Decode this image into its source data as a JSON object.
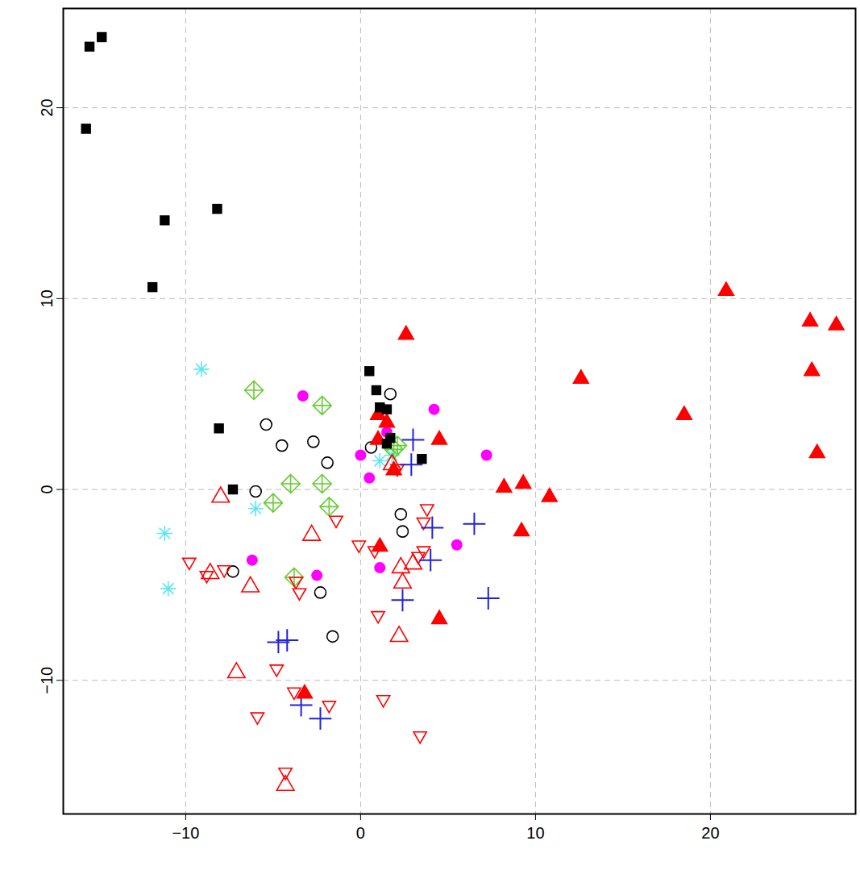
{
  "chart_data": {
    "type": "scatter",
    "xlim": [
      -17,
      28.3
    ],
    "ylim": [
      -17,
      25.2
    ],
    "xticks": [
      -10,
      0,
      10,
      20
    ],
    "yticks": [
      -10,
      0,
      10,
      20
    ],
    "grid": true,
    "series": [
      {
        "color": "#5ce6f5",
        "marker": "asterisk",
        "values": [
          [
            -9.1,
            6.3
          ],
          [
            -6.0,
            -1.0
          ],
          [
            -11.2,
            -2.3
          ],
          [
            -11.0,
            -5.2
          ],
          [
            1.1,
            1.5
          ],
          [
            1.8,
            1.8
          ]
        ]
      },
      {
        "color": "#66cc33",
        "marker": "diamond-plus",
        "values": [
          [
            -6.1,
            5.2
          ],
          [
            -2.2,
            4.4
          ],
          [
            -4.0,
            0.3
          ],
          [
            -2.2,
            0.3
          ],
          [
            -5.0,
            -0.7
          ],
          [
            -1.8,
            -0.9
          ],
          [
            -3.8,
            -4.6
          ],
          [
            1.9,
            2.1
          ],
          [
            2.1,
            2.3
          ]
        ]
      },
      {
        "color": "#000000",
        "marker": "open-circle",
        "values": [
          [
            -5.4,
            3.4
          ],
          [
            -4.5,
            2.3
          ],
          [
            -2.7,
            2.5
          ],
          [
            -1.9,
            1.4
          ],
          [
            1.7,
            5.0
          ],
          [
            0.6,
            2.2
          ],
          [
            -6.0,
            -0.1
          ],
          [
            2.3,
            -1.3
          ],
          [
            2.4,
            -2.2
          ],
          [
            -7.3,
            -4.3
          ],
          [
            -2.3,
            -5.4
          ],
          [
            -1.6,
            -7.7
          ]
        ]
      },
      {
        "color": "#ff0000",
        "marker": "open-triangle",
        "values": [
          [
            -8.0,
            -0.4
          ],
          [
            -2.8,
            -2.4
          ],
          [
            -8.6,
            -4.4
          ],
          [
            -6.3,
            -5.1
          ],
          [
            -7.1,
            -9.6
          ],
          [
            2.3,
            -4.1
          ],
          [
            2.4,
            -4.9
          ],
          [
            2.2,
            -7.7
          ],
          [
            1.8,
            1.3
          ],
          [
            -4.3,
            -15.5
          ],
          [
            3.0,
            -3.9
          ]
        ]
      },
      {
        "color": "#ff0000",
        "marker": "open-triangle-down",
        "values": [
          [
            -9.8,
            -3.8
          ],
          [
            -8.8,
            -4.5
          ],
          [
            -7.8,
            -4.2
          ],
          [
            -1.4,
            -1.6
          ],
          [
            -0.1,
            -2.9
          ],
          [
            0.8,
            -3.2
          ],
          [
            3.8,
            -1.0
          ],
          [
            3.6,
            -1.7
          ],
          [
            3.6,
            -3.2
          ],
          [
            3.3,
            -3.5
          ],
          [
            1.0,
            -6.6
          ],
          [
            -3.5,
            -5.4
          ],
          [
            -3.7,
            -4.8
          ],
          [
            -4.8,
            -9.4
          ],
          [
            -5.9,
            -11.9
          ],
          [
            -3.8,
            -10.6
          ],
          [
            -1.8,
            -11.3
          ],
          [
            1.3,
            -11.0
          ],
          [
            3.4,
            -12.9
          ],
          [
            -4.3,
            -14.8
          ],
          [
            2.1,
            1.1
          ]
        ]
      },
      {
        "color": "#2222dd",
        "marker": "plus",
        "values": [
          [
            3.0,
            2.6
          ],
          [
            2.9,
            1.3
          ],
          [
            4.1,
            -2.0
          ],
          [
            6.5,
            -1.8
          ],
          [
            4.0,
            -3.7
          ],
          [
            2.4,
            -5.8
          ],
          [
            7.3,
            -5.7
          ],
          [
            -4.7,
            -8.0
          ],
          [
            -4.2,
            -7.9
          ],
          [
            -3.4,
            -11.3
          ],
          [
            -2.3,
            -12.0
          ]
        ]
      },
      {
        "color": "#ff00ff",
        "marker": "filled-circle",
        "values": [
          [
            -3.3,
            4.9
          ],
          [
            4.2,
            4.2
          ],
          [
            0.0,
            1.8
          ],
          [
            0.5,
            0.6
          ],
          [
            7.2,
            1.8
          ],
          [
            -6.2,
            -3.7
          ],
          [
            -2.5,
            -4.5
          ],
          [
            1.1,
            -4.1
          ],
          [
            5.5,
            -2.9
          ],
          [
            1.5,
            3.0
          ]
        ]
      },
      {
        "color": "#ff0000",
        "marker": "filled-triangle",
        "values": [
          [
            20.9,
            10.4
          ],
          [
            25.7,
            8.8
          ],
          [
            27.2,
            8.6
          ],
          [
            25.8,
            6.2
          ],
          [
            26.1,
            1.9
          ],
          [
            12.6,
            5.8
          ],
          [
            18.5,
            3.9
          ],
          [
            8.2,
            0.1
          ],
          [
            9.3,
            0.3
          ],
          [
            10.8,
            -0.4
          ],
          [
            9.2,
            -2.2
          ],
          [
            4.5,
            -6.8
          ],
          [
            2.6,
            8.1
          ],
          [
            4.5,
            2.6
          ],
          [
            1.0,
            3.9
          ],
          [
            1.5,
            3.5
          ],
          [
            1.0,
            2.6
          ],
          [
            1.1,
            -3.0
          ],
          [
            -3.2,
            -10.7
          ],
          [
            1.9,
            1.0
          ]
        ]
      },
      {
        "color": "#000000",
        "marker": "filled-square",
        "values": [
          [
            -15.5,
            23.2
          ],
          [
            -14.8,
            23.7
          ],
          [
            -15.7,
            18.9
          ],
          [
            -11.2,
            14.1
          ],
          [
            -8.2,
            14.7
          ],
          [
            -11.9,
            10.6
          ],
          [
            -8.1,
            3.2
          ],
          [
            -7.3,
            0.0
          ],
          [
            0.5,
            6.2
          ],
          [
            0.9,
            5.2
          ],
          [
            1.1,
            4.3
          ],
          [
            1.5,
            4.2
          ],
          [
            1.5,
            2.4
          ],
          [
            1.7,
            2.7
          ],
          [
            3.5,
            1.6
          ]
        ]
      }
    ]
  }
}
